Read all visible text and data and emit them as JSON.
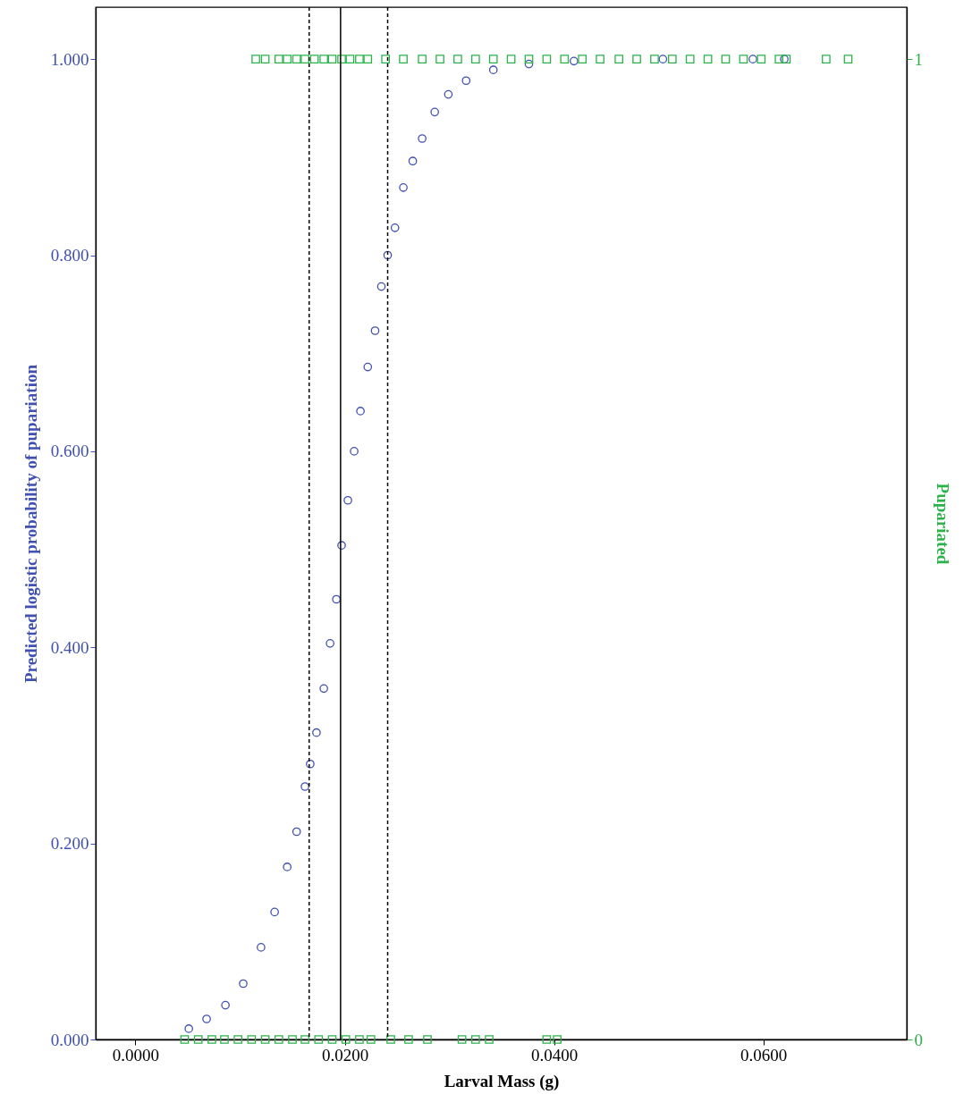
{
  "chart_data": {
    "type": "scatter",
    "xlabel": "Larval Mass (g)",
    "ylabel": "Predicted logistic probability of pupariation",
    "y2label": "Pupariated",
    "xlim": [
      -0.0038,
      0.0737
    ],
    "xticks": [
      {
        "value": 0,
        "label": "0.0000"
      },
      {
        "value": 0.02,
        "label": "0.0200"
      },
      {
        "value": 0.04,
        "label": "0.0400"
      },
      {
        "value": 0.06,
        "label": "0.0600"
      }
    ],
    "ylim": [
      0,
      1.053
    ],
    "yticks": [
      {
        "value": 0,
        "label": "0.000"
      },
      {
        "value": 0.2,
        "label": "0.200"
      },
      {
        "value": 0.4,
        "label": "0.400"
      },
      {
        "value": 0.6,
        "label": "0.600"
      },
      {
        "value": 0.8,
        "label": "0.800"
      },
      {
        "value": 1,
        "label": "1.000"
      }
    ],
    "y2lim": [
      0,
      1.053
    ],
    "y2ticks": [
      0,
      1
    ],
    "grid": false,
    "series": [
      {
        "color": "#4050b0",
        "marker": "circle",
        "x": [
          0.0051,
          0.0068,
          0.0086,
          0.0103,
          0.012,
          0.0133,
          0.0145,
          0.0154,
          0.0162,
          0.0167,
          0.0173,
          0.018,
          0.0186,
          0.0192,
          0.0197,
          0.0203,
          0.0209,
          0.0215,
          0.0222,
          0.0229,
          0.0235,
          0.0241,
          0.0248,
          0.0256,
          0.0265,
          0.0274,
          0.0286,
          0.0299,
          0.0316,
          0.0342,
          0.0376,
          0.0419,
          0.0504,
          0.059,
          0.062
        ],
        "values": [
          0.011,
          0.021,
          0.035,
          0.057,
          0.094,
          0.13,
          0.176,
          0.212,
          0.258,
          0.281,
          0.313,
          0.358,
          0.404,
          0.449,
          0.504,
          0.55,
          0.6,
          0.641,
          0.686,
          0.723,
          0.768,
          0.8,
          0.828,
          0.869,
          0.896,
          0.919,
          0.946,
          0.964,
          0.978,
          0.989,
          0.995,
          0.998,
          1.0,
          1.0,
          1.0
        ]
      },
      {
        "color": "#2bb34a",
        "marker": "square",
        "axis": "y2",
        "x": [
          0.0115,
          0.0124,
          0.0137,
          0.0145,
          0.0154,
          0.0162,
          0.0171,
          0.018,
          0.0188,
          0.0197,
          0.0205,
          0.0214,
          0.0222,
          0.0239,
          0.0256,
          0.0274,
          0.0291,
          0.0308,
          0.0325,
          0.0342,
          0.0359,
          0.0376,
          0.0393,
          0.041,
          0.0427,
          0.0444,
          0.0462,
          0.0479,
          0.0496,
          0.0513,
          0.053,
          0.0547,
          0.0564,
          0.0581,
          0.0598,
          0.0615,
          0.0622,
          0.066,
          0.0681,
          0.0047,
          0.006,
          0.0073,
          0.0085,
          0.0098,
          0.0111,
          0.0124,
          0.0137,
          0.015,
          0.0162,
          0.0175,
          0.0188,
          0.0201,
          0.0214,
          0.0225,
          0.0244,
          0.0261,
          0.0279,
          0.0312,
          0.0325,
          0.0338,
          0.0393,
          0.0403
        ],
        "values": [
          1,
          1,
          1,
          1,
          1,
          1,
          1,
          1,
          1,
          1,
          1,
          1,
          1,
          1,
          1,
          1,
          1,
          1,
          1,
          1,
          1,
          1,
          1,
          1,
          1,
          1,
          1,
          1,
          1,
          1,
          1,
          1,
          1,
          1,
          1,
          1,
          1,
          1,
          1,
          0,
          0,
          0,
          0,
          0,
          0,
          0,
          0,
          0,
          0,
          0,
          0,
          0,
          0,
          0,
          0,
          0,
          0,
          0,
          0,
          0,
          0,
          0
        ]
      }
    ],
    "ref_lines": [
      {
        "axis": "x",
        "value": 0.0196,
        "line_style": "solid"
      },
      {
        "axis": "x",
        "value": 0.0166,
        "line_style": "dashed"
      },
      {
        "axis": "x",
        "value": 0.0241,
        "line_style": "dashed"
      }
    ]
  }
}
